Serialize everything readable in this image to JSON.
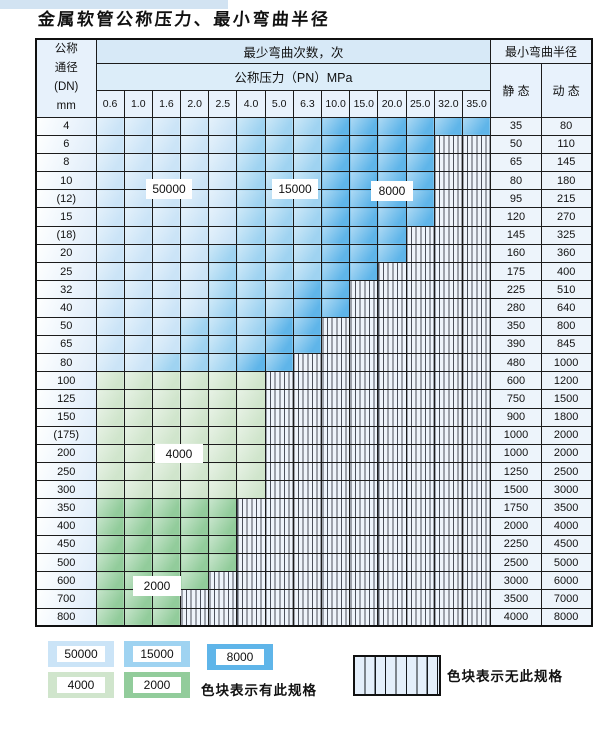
{
  "title": "金属软管公称压力、最小弯曲半径",
  "colors": {
    "cycles_50000_light_blue": "#cbe4f7",
    "cycles_15000_medium_blue": "#9fd3f1",
    "cycles_8000_dark_blue": "#5fb5e9",
    "cycles_4000_light_green": "#d0e5cc",
    "cycles_2000_dark_green": "#92cc9b",
    "stripe_background": "#eef4fb",
    "header_band_blue": "#d7e9f7"
  },
  "table": {
    "corner": {
      "l1": "公称",
      "l2": "通径",
      "l3": "(DN)",
      "l4": "mm"
    },
    "cycles_header": "最少弯曲次数，次",
    "pressure_header": "公称压力（PN）MPa",
    "radius_header": "最小弯曲半径",
    "static_header": "静 态",
    "dynamic_header": "动 态",
    "pressure_cols": [
      "0.6",
      "1.0",
      "1.6",
      "2.0",
      "2.5",
      "4.0",
      "5.0",
      "6.3",
      "10.0",
      "15.0",
      "20.0",
      "25.0",
      "32.0",
      "35.0"
    ],
    "zone_legend_key": {
      "L": "50000",
      "M": "15000",
      "D": "8000",
      "G": "4000",
      "H": "2000",
      "S": "no-spec-striped"
    },
    "rows": [
      {
        "dn": "4",
        "zones": "LLLLLMMMDDDDDD",
        "static": "35",
        "dynamic": "80"
      },
      {
        "dn": "6",
        "zones": "LLLLLMMMDDDDSS",
        "static": "50",
        "dynamic": "110"
      },
      {
        "dn": "8",
        "zones": "LLLLLMMMDDDDSS",
        "static": "65",
        "dynamic": "145"
      },
      {
        "dn": "10",
        "zones": "LLLLLMMMDDDDSS",
        "static": "80",
        "dynamic": "180"
      },
      {
        "dn": "(12)",
        "zones": "LLLLLMMMDDDDSS",
        "static": "95",
        "dynamic": "215"
      },
      {
        "dn": "15",
        "zones": "LLLLLMMMDDDDSS",
        "static": "120",
        "dynamic": "270"
      },
      {
        "dn": "(18)",
        "zones": "LLLLLMMMDDDSSS",
        "static": "145",
        "dynamic": "325"
      },
      {
        "dn": "20",
        "zones": "LLLLMMMMDDDSSS",
        "static": "160",
        "dynamic": "360"
      },
      {
        "dn": "25",
        "zones": "LLLLMMMMDDSSSS",
        "static": "175",
        "dynamic": "400"
      },
      {
        "dn": "32",
        "zones": "LLLLMMMDDSSSSS",
        "static": "225",
        "dynamic": "510"
      },
      {
        "dn": "40",
        "zones": "LLLLMMMDDSSSSS",
        "static": "280",
        "dynamic": "640"
      },
      {
        "dn": "50",
        "zones": "LLLMMMDDSSSSSS",
        "static": "350",
        "dynamic": "800"
      },
      {
        "dn": "65",
        "zones": "LLLMMMDDSSSSSS",
        "static": "390",
        "dynamic": "845"
      },
      {
        "dn": "80",
        "zones": "LLMMMDDSSSSSSS",
        "static": "480",
        "dynamic": "1000"
      },
      {
        "dn": "100",
        "zones": "GGGGGGSSSSSSSS",
        "static": "600",
        "dynamic": "1200"
      },
      {
        "dn": "125",
        "zones": "GGGGGGSSSSSSSS",
        "static": "750",
        "dynamic": "1500"
      },
      {
        "dn": "150",
        "zones": "GGGGGGSSSSSSSS",
        "static": "900",
        "dynamic": "1800"
      },
      {
        "dn": "(175)",
        "zones": "GGGGGGSSSSSSSS",
        "static": "1000",
        "dynamic": "2000"
      },
      {
        "dn": "200",
        "zones": "GGGGGGSSSSSSSS",
        "static": "1000",
        "dynamic": "2000"
      },
      {
        "dn": "250",
        "zones": "GGGGGGSSSSSSSS",
        "static": "1250",
        "dynamic": "2500"
      },
      {
        "dn": "300",
        "zones": "GGGGGGSSSSSSSS",
        "static": "1500",
        "dynamic": "3000"
      },
      {
        "dn": "350",
        "zones": "HHHHHSSSSSSSSS",
        "static": "1750",
        "dynamic": "3500"
      },
      {
        "dn": "400",
        "zones": "HHHHHSSSSSSSSS",
        "static": "2000",
        "dynamic": "4000"
      },
      {
        "dn": "450",
        "zones": "HHHHHSSSSSSSSS",
        "static": "2250",
        "dynamic": "4500"
      },
      {
        "dn": "500",
        "zones": "HHHHHSSSSSSSSS",
        "static": "2500",
        "dynamic": "5000"
      },
      {
        "dn": "600",
        "zones": "HHHHSSSSSSSSSS",
        "static": "3000",
        "dynamic": "6000"
      },
      {
        "dn": "700",
        "zones": "HHHSSSSSSSSSSS",
        "static": "3500",
        "dynamic": "7000"
      },
      {
        "dn": "800",
        "zones": "HHHSSSSSSSSSSS",
        "static": "4000",
        "dynamic": "8000"
      }
    ]
  },
  "overlays": {
    "o50000": {
      "label": "50000"
    },
    "o15000": {
      "label": "15000"
    },
    "o8000": {
      "label": "8000"
    },
    "o4000": {
      "label": "4000"
    },
    "o2000": {
      "label": "2000"
    }
  },
  "legend": {
    "items": [
      {
        "label": "50000",
        "color": "L"
      },
      {
        "label": "15000",
        "color": "M"
      },
      {
        "label": "8000",
        "color": "D"
      },
      {
        "label": "4000",
        "color": "G"
      },
      {
        "label": "2000",
        "color": "H"
      }
    ],
    "has_text": "色块表示有此规格",
    "none_text": "色块表示无此规格"
  }
}
